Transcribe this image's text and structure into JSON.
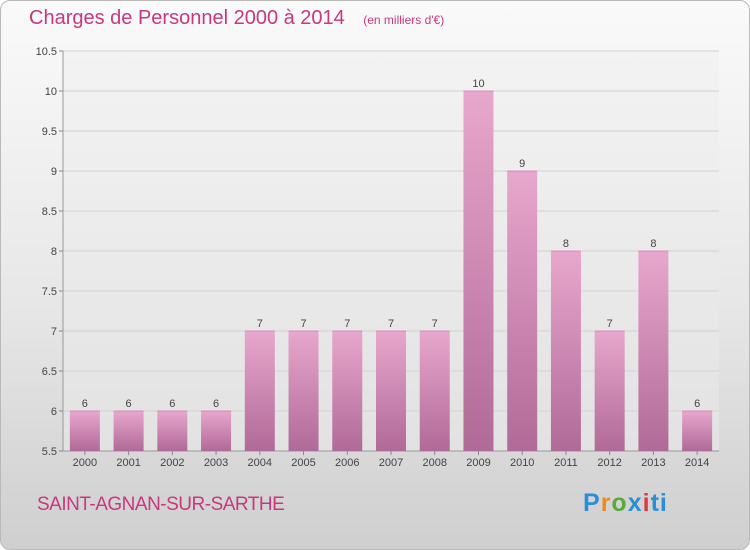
{
  "header": {
    "title": "Charges de Personnel 2000 à 2014",
    "subtitle": "(en milliers d'€)"
  },
  "footer": {
    "city": "SAINT-AGNAN-SUR-SARTHE",
    "logo_text": "Proxiti"
  },
  "colors": {
    "accent": "#c8387e",
    "bar_top": "#e8a7cd",
    "bar_bottom": "#b06a97",
    "grid": "#d4d4d4"
  },
  "chart_data": {
    "type": "bar",
    "title": "Charges de Personnel 2000 à 2014",
    "subtitle": "(en milliers d'€)",
    "categories": [
      "2000",
      "2001",
      "2002",
      "2003",
      "2004",
      "2005",
      "2006",
      "2007",
      "2008",
      "2009",
      "2010",
      "2011",
      "2012",
      "2013",
      "2014"
    ],
    "values": [
      6,
      6,
      6,
      6,
      7,
      7,
      7,
      7,
      7,
      10,
      9,
      8,
      7,
      8,
      6
    ],
    "data_labels": [
      "6",
      "6",
      "6",
      "6",
      "7",
      "7",
      "7",
      "7",
      "7",
      "10",
      "9",
      "8",
      "7",
      "8",
      "6"
    ],
    "ylim": [
      5.5,
      10.5
    ],
    "yticks": [
      5.5,
      6,
      6.5,
      7,
      7.5,
      8,
      8.5,
      9,
      9.5,
      10,
      10.5
    ],
    "ytick_labels": [
      "5.5",
      "6",
      "6.5",
      "7",
      "7.5",
      "8",
      "8.5",
      "9",
      "9.5",
      "10",
      "10.5"
    ],
    "grid": true,
    "legend": "none",
    "xlabel": "",
    "ylabel": ""
  }
}
